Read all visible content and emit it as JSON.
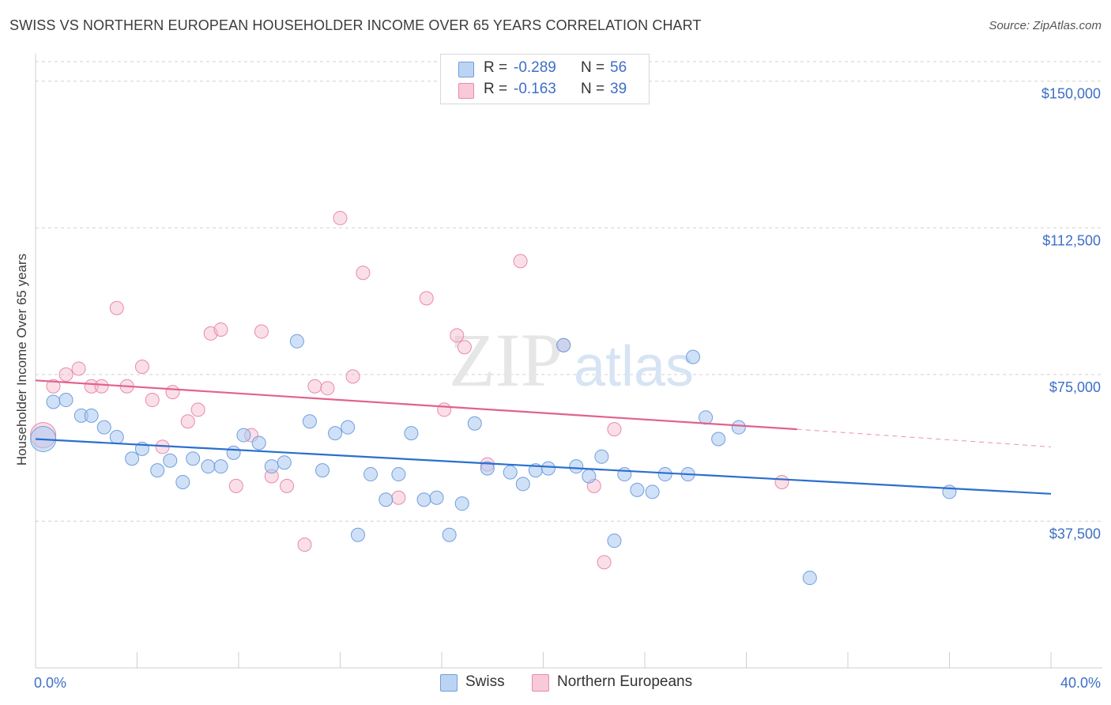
{
  "title": "SWISS VS NORTHERN EUROPEAN HOUSEHOLDER INCOME OVER 65 YEARS CORRELATION CHART",
  "source": "Source: ZipAtlas.com",
  "watermark": {
    "zip": "ZIP",
    "atlas": "atlas"
  },
  "legend": {
    "swiss": {
      "r_label": "R =",
      "r_value": "-0.289",
      "n_label": "N =",
      "n_value": "56"
    },
    "northern": {
      "r_label": "R =",
      "r_value": "-0.163",
      "n_label": "N =",
      "n_value": "39"
    }
  },
  "bottom_legend": {
    "swiss": "Swiss",
    "northern": "Northern Europeans"
  },
  "colors": {
    "swiss_fill": "#a9c8f0",
    "swiss_stroke": "#6f9fdc",
    "swiss_line": "#2a6fcf",
    "northern_fill": "#f5b8cb",
    "northern_stroke": "#e98aa8",
    "northern_line": "#e2628c",
    "axis_label": "#3d6fc6",
    "grid": "#d0d0d0"
  },
  "chart_data": {
    "type": "scatter",
    "title": "SWISS VS NORTHERN EUROPEAN HOUSEHOLDER INCOME OVER 65 YEARS CORRELATION CHART",
    "xlabel": "",
    "ylabel": "Householder Income Over 65 years",
    "xlim": [
      0,
      40
    ],
    "ylim": [
      0,
      155000
    ],
    "x_tick_labels": [
      "0.0%",
      "40.0%"
    ],
    "y_ticks": [
      37500,
      75000,
      112500,
      150000
    ],
    "y_tick_labels": [
      "$37,500",
      "$75,000",
      "$112,500",
      "$150,000"
    ],
    "grid": "horizontal dashed",
    "legend_position": "top-center",
    "series": [
      {
        "name": "Swiss",
        "trend": {
          "x": [
            0,
            40
          ],
          "y": [
            58500,
            44500
          ]
        },
        "points": [
          [
            0.3,
            58500
          ],
          [
            0.7,
            68000
          ],
          [
            1.2,
            68500
          ],
          [
            1.8,
            64500
          ],
          [
            2.2,
            64500
          ],
          [
            2.7,
            61500
          ],
          [
            3.2,
            59000
          ],
          [
            3.8,
            53500
          ],
          [
            4.2,
            56000
          ],
          [
            4.8,
            50500
          ],
          [
            5.3,
            53000
          ],
          [
            5.8,
            47500
          ],
          [
            6.2,
            53500
          ],
          [
            6.8,
            51500
          ],
          [
            7.3,
            51500
          ],
          [
            7.8,
            55000
          ],
          [
            8.2,
            59500
          ],
          [
            8.8,
            57500
          ],
          [
            9.3,
            51500
          ],
          [
            9.8,
            52500
          ],
          [
            10.3,
            83500
          ],
          [
            10.8,
            63000
          ],
          [
            11.3,
            50500
          ],
          [
            11.8,
            60000
          ],
          [
            12.3,
            61500
          ],
          [
            12.7,
            34000
          ],
          [
            13.2,
            49500
          ],
          [
            13.8,
            43000
          ],
          [
            14.3,
            49500
          ],
          [
            14.8,
            60000
          ],
          [
            15.3,
            43000
          ],
          [
            15.8,
            43500
          ],
          [
            16.3,
            34000
          ],
          [
            16.8,
            42000
          ],
          [
            17.3,
            62500
          ],
          [
            17.8,
            51000
          ],
          [
            18.7,
            50000
          ],
          [
            19.2,
            47000
          ],
          [
            19.7,
            50500
          ],
          [
            20.2,
            51000
          ],
          [
            20.8,
            82500
          ],
          [
            21.3,
            51500
          ],
          [
            21.8,
            49000
          ],
          [
            22.3,
            54000
          ],
          [
            22.8,
            32500
          ],
          [
            23.2,
            49500
          ],
          [
            23.7,
            45500
          ],
          [
            24.3,
            45000
          ],
          [
            24.8,
            49500
          ],
          [
            25.7,
            49500
          ],
          [
            25.9,
            79500
          ],
          [
            26.4,
            64000
          ],
          [
            26.9,
            58500
          ],
          [
            27.7,
            61500
          ],
          [
            30.5,
            23000
          ],
          [
            36.0,
            45000
          ]
        ]
      },
      {
        "name": "Northern Europeans",
        "trend": {
          "x": [
            0,
            30
          ],
          "y": [
            73500,
            61000
          ]
        },
        "trend_dashed": {
          "x": [
            30,
            40
          ],
          "y": [
            61000,
            56500
          ]
        },
        "points": [
          [
            0.3,
            59500
          ],
          [
            0.7,
            72000
          ],
          [
            1.2,
            75000
          ],
          [
            1.7,
            76500
          ],
          [
            2.2,
            72000
          ],
          [
            2.6,
            72000
          ],
          [
            3.2,
            92000
          ],
          [
            3.6,
            72000
          ],
          [
            4.2,
            77000
          ],
          [
            4.6,
            68500
          ],
          [
            5.0,
            56500
          ],
          [
            5.4,
            70500
          ],
          [
            6.0,
            63000
          ],
          [
            6.4,
            66000
          ],
          [
            6.9,
            85500
          ],
          [
            7.3,
            86500
          ],
          [
            7.9,
            46500
          ],
          [
            8.5,
            59500
          ],
          [
            8.9,
            86000
          ],
          [
            9.3,
            49000
          ],
          [
            9.9,
            46500
          ],
          [
            10.6,
            31500
          ],
          [
            11.0,
            72000
          ],
          [
            11.5,
            71500
          ],
          [
            12.0,
            115000
          ],
          [
            12.5,
            74500
          ],
          [
            12.9,
            101000
          ],
          [
            14.3,
            43500
          ],
          [
            15.4,
            94500
          ],
          [
            16.1,
            66000
          ],
          [
            16.6,
            85000
          ],
          [
            16.9,
            82000
          ],
          [
            17.8,
            52000
          ],
          [
            19.1,
            104000
          ],
          [
            20.8,
            82500
          ],
          [
            22.0,
            46500
          ],
          [
            22.4,
            27000
          ],
          [
            22.8,
            61000
          ],
          [
            29.4,
            47500
          ]
        ]
      }
    ]
  }
}
